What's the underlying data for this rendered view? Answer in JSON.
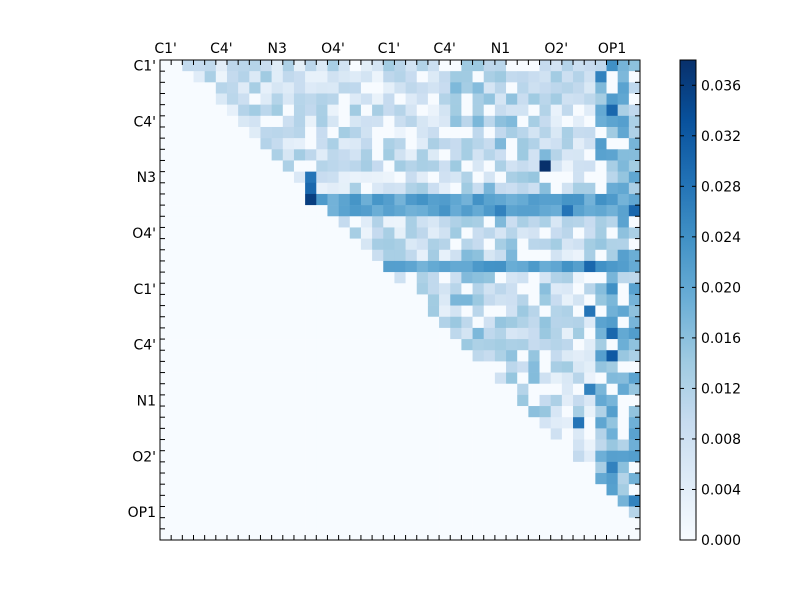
{
  "chart_data": {
    "type": "heatmap",
    "title": "",
    "xlabel": "",
    "ylabel": "",
    "matrix_size": 43,
    "x_tick_labels": [
      "C1'",
      "C4'",
      "N3",
      "O4'",
      "C1'",
      "C4'",
      "N1",
      "O2'",
      "OP1"
    ],
    "y_tick_labels": [
      "C1'",
      "C4'",
      "N3",
      "O4'",
      "C1'",
      "C4'",
      "N1",
      "O2'",
      "OP1"
    ],
    "x_label_position": "top",
    "colormap": [
      "#f7fbff",
      "#deebf7",
      "#c6dbef",
      "#9ecae1",
      "#6baed6",
      "#4292c6",
      "#2171b5",
      "#08519c",
      "#08306b"
    ],
    "value_range": [
      0.0,
      0.038
    ],
    "colorbar": {
      "ticks": [
        "0.000",
        "0.004",
        "0.008",
        "0.012",
        "0.016",
        "0.020",
        "0.024",
        "0.028",
        "0.032",
        "0.036"
      ],
      "values": [
        0.0,
        0.004,
        0.008,
        0.012,
        0.016,
        0.02,
        0.024,
        0.028,
        0.032,
        0.036
      ]
    },
    "upper_triangle_only": true,
    "highlighted_rows": [
      12,
      13,
      18
    ],
    "cells_approx": [
      [
        0,
        40,
        0.024
      ],
      [
        1,
        39,
        0.026
      ],
      [
        3,
        40,
        0.022
      ],
      [
        4,
        40,
        0.03
      ],
      [
        9,
        34,
        0.038
      ],
      [
        10,
        13,
        0.028
      ],
      [
        11,
        13,
        0.03
      ],
      [
        12,
        13,
        0.036
      ],
      [
        13,
        30,
        0.026
      ],
      [
        13,
        36,
        0.028
      ],
      [
        13,
        42,
        0.03
      ],
      [
        18,
        38,
        0.03
      ],
      [
        20,
        40,
        0.024
      ],
      [
        22,
        38,
        0.028
      ],
      [
        24,
        40,
        0.03
      ],
      [
        26,
        40,
        0.032
      ],
      [
        29,
        38,
        0.026
      ],
      [
        32,
        37,
        0.028
      ],
      [
        36,
        40,
        0.026
      ],
      [
        39,
        42,
        0.026
      ]
    ]
  }
}
